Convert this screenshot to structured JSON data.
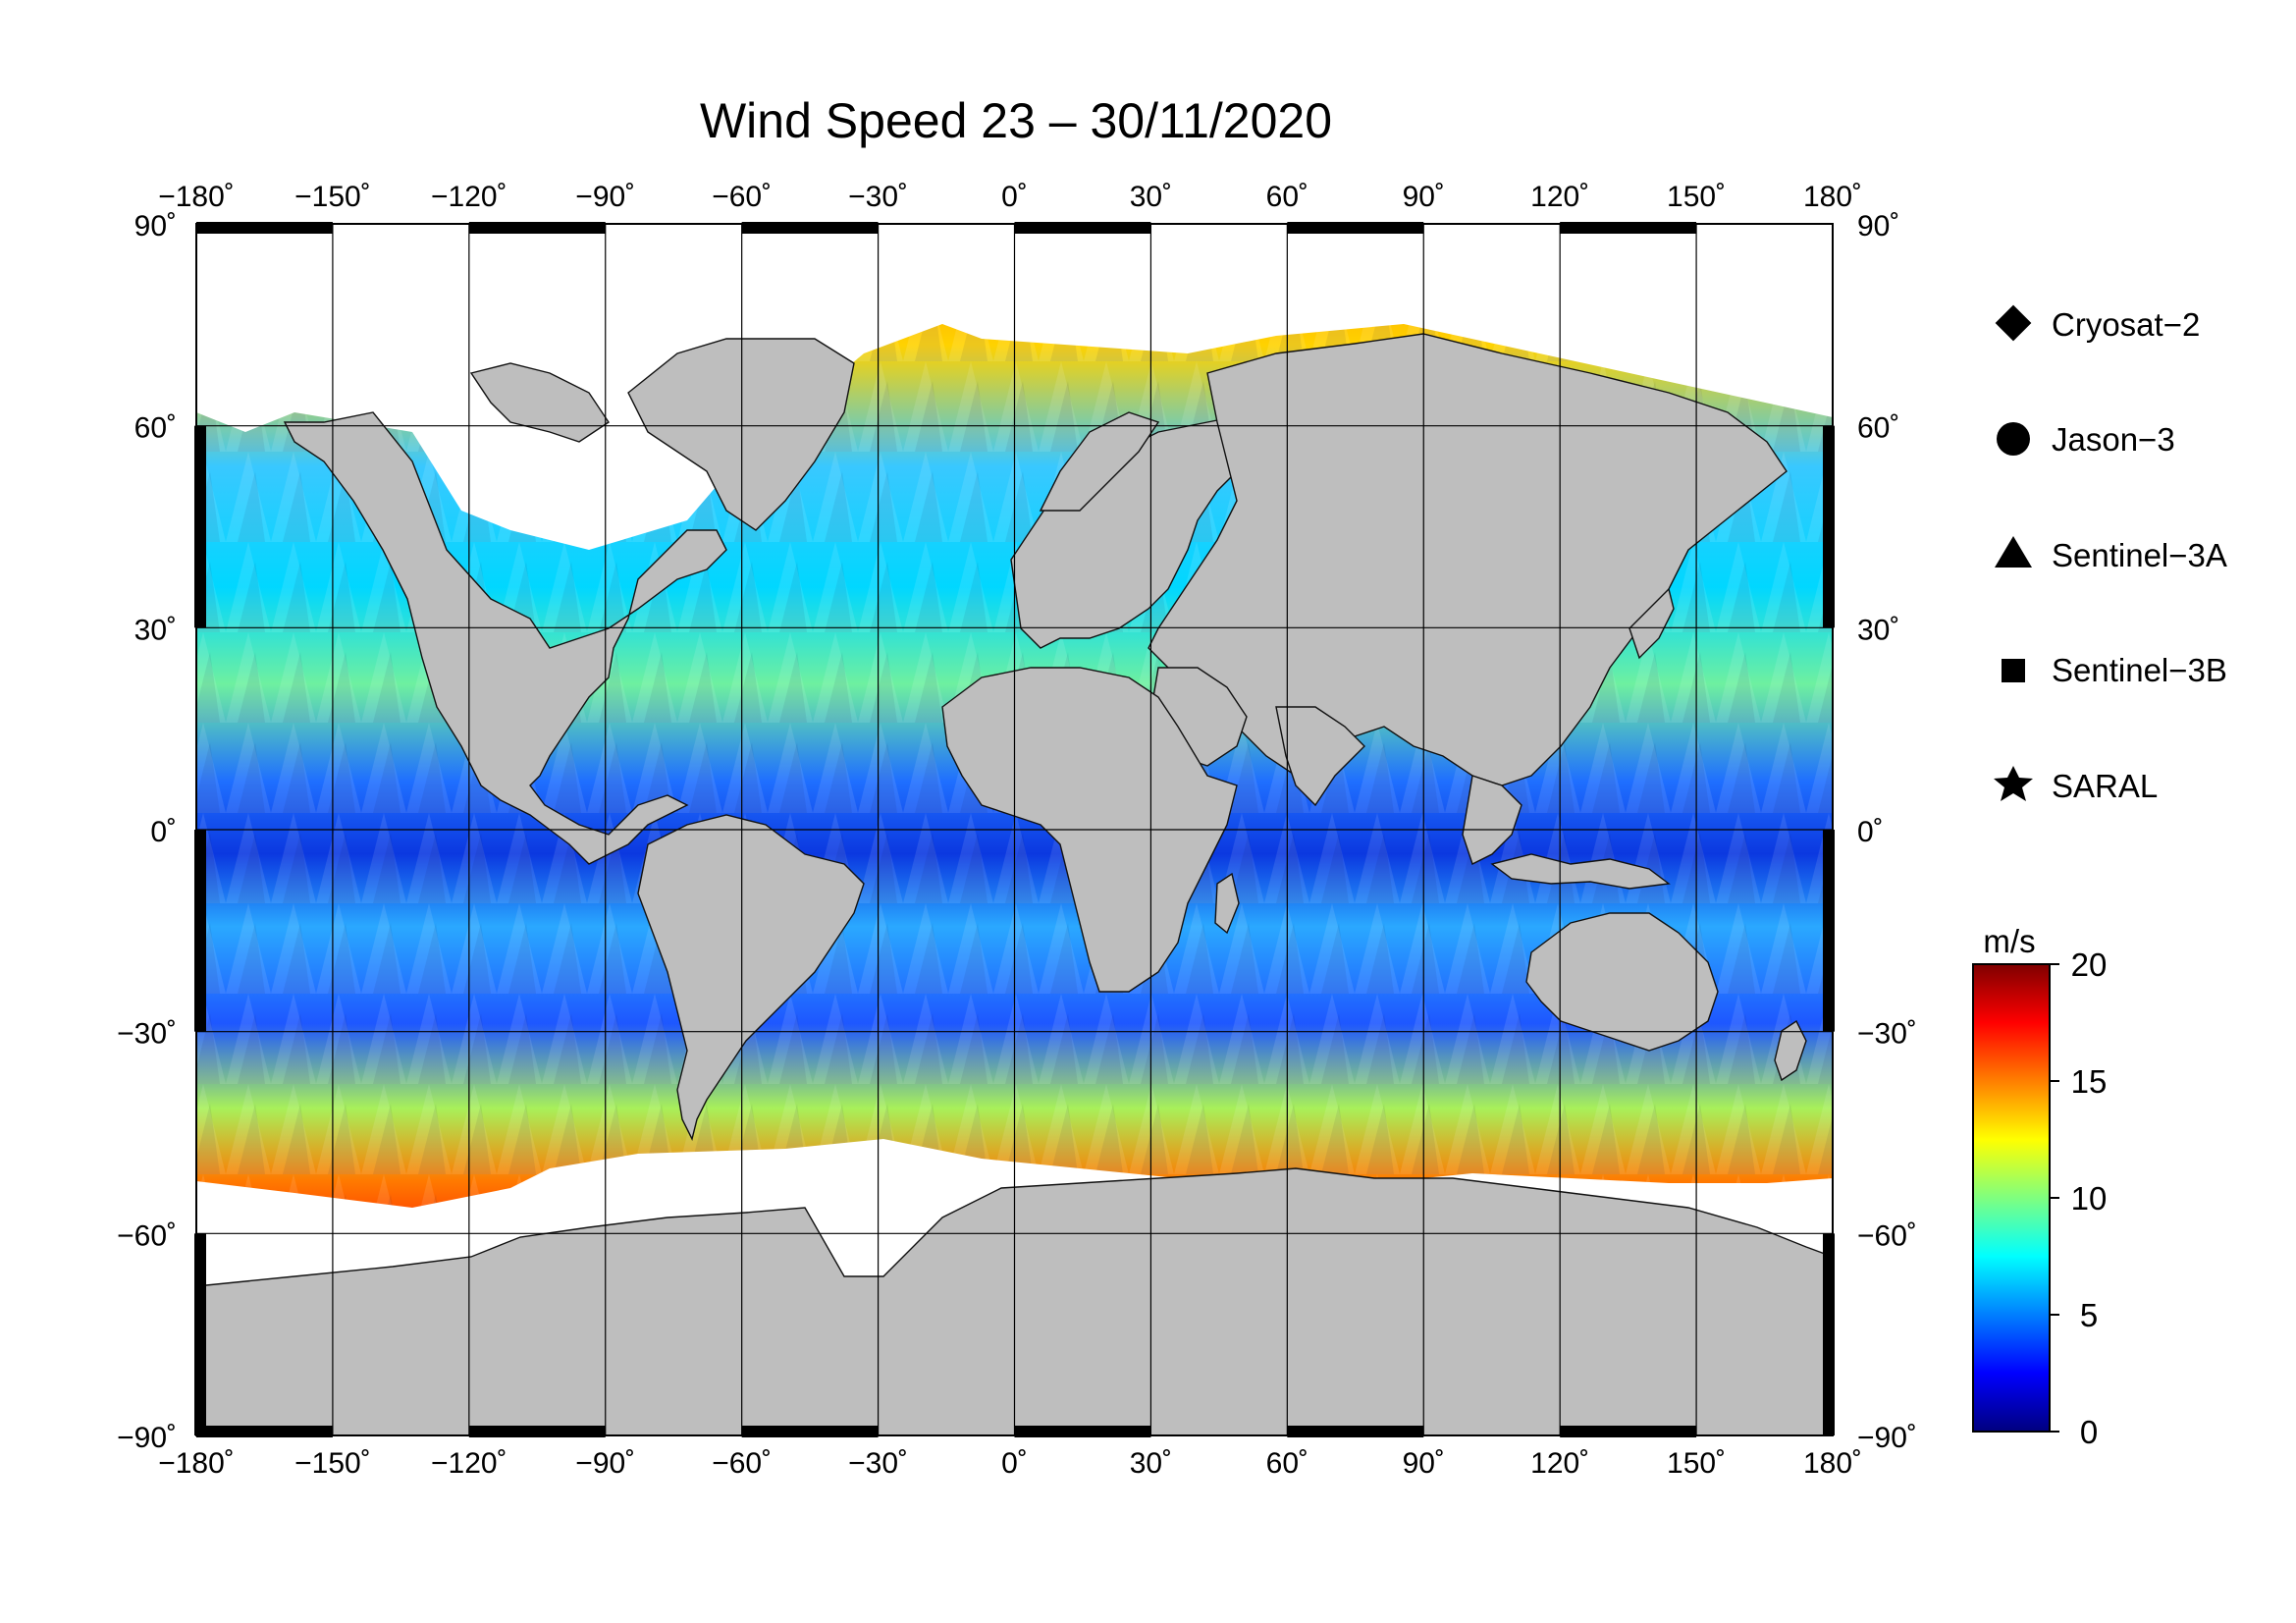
{
  "map": {
    "title": "Wind Speed 23 – 30/11/2020",
    "lon_ticks": [
      "−180˚",
      "−150˚",
      "−120˚",
      "−90˚",
      "−60˚",
      "−30˚",
      "0˚",
      "30˚",
      "60˚",
      "90˚",
      "120˚",
      "150˚",
      "180˚"
    ],
    "lat_ticks_left": [
      "90˚",
      "60˚",
      "30˚",
      "0˚",
      "−30˚",
      "−60˚",
      "−90˚"
    ],
    "lat_ticks_right": [
      "90˚",
      "60˚",
      "30˚",
      "0˚",
      "−30˚",
      "−60˚",
      "−90˚"
    ],
    "lon_range": [
      -180,
      180
    ],
    "lat_range": [
      -90,
      90
    ],
    "land_color": "#bebebe",
    "ice_color": "#ffffff"
  },
  "legend": {
    "items": [
      {
        "label": "Cryosat−2",
        "symbol": "diamond"
      },
      {
        "label": "Jason−3",
        "symbol": "circle"
      },
      {
        "label": "Sentinel−3A",
        "symbol": "triangle"
      },
      {
        "label": "Sentinel−3B",
        "symbol": "square"
      },
      {
        "label": "SARAL",
        "symbol": "star"
      }
    ]
  },
  "colorbar": {
    "unit": "m/s",
    "ticks": [
      "20",
      "15",
      "10",
      "5",
      "0"
    ],
    "min": 0,
    "max": 20,
    "colors": [
      "#00007f",
      "#0000ff",
      "#007fff",
      "#00ffff",
      "#7fff7f",
      "#ffff00",
      "#ff7f00",
      "#ff0000",
      "#7f0000"
    ]
  }
}
